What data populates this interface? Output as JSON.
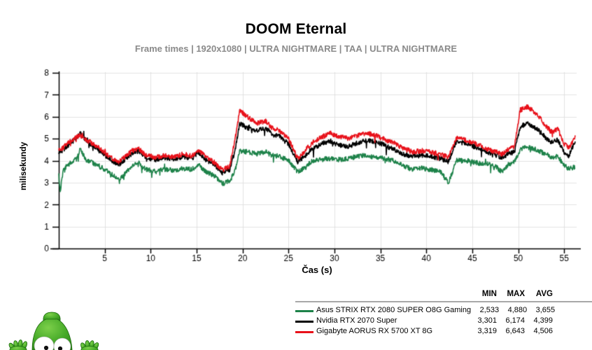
{
  "page": {
    "background": "#ffffff"
  },
  "header": {
    "title": "DOOM Eternal",
    "subtitle": "Frame times | 1920x1080 | ULTRA NIGHTMARE | TAA | ULTRA NIGHTMARE"
  },
  "chart_data": {
    "type": "line",
    "title": "DOOM Eternal",
    "subtitle": "Frame times | 1920x1080 | ULTRA NIGHTMARE | TAA | ULTRA NIGHTMARE",
    "xlabel": "Čas (s)",
    "ylabel": "milisekundy",
    "xlim": [
      0,
      56.2
    ],
    "ylim": [
      0,
      8
    ],
    "xticks": [
      5,
      10,
      15,
      20,
      25,
      30,
      35,
      40,
      45,
      50,
      55
    ],
    "yticks": [
      0,
      1,
      2,
      3,
      4,
      5,
      6,
      7,
      8
    ],
    "grid": true,
    "grid_color": "#e2e2e2",
    "axis_color": "#000000",
    "sample_step_s": 0.04,
    "noise_amplitude_ms": 0.22,
    "legend": {
      "columns": [
        "MIN",
        "MAX",
        "AVG"
      ],
      "position": "bottom-right",
      "rule_color": "#a8a8a8"
    },
    "series": [
      {
        "name": "Asus STRIX RTX 2080 SUPER O8G Gaming",
        "color": "#1d8249",
        "min": "2,533",
        "max": "4,880",
        "avg": "3,655",
        "keypoints": [
          [
            0,
            3.35
          ],
          [
            0.15,
            2.6
          ],
          [
            0.5,
            3.6
          ],
          [
            1,
            3.8
          ],
          [
            2,
            4.1
          ],
          [
            2.35,
            4.55
          ],
          [
            3,
            4.0
          ],
          [
            4,
            3.85
          ],
          [
            5,
            3.6
          ],
          [
            6,
            3.3
          ],
          [
            6.6,
            3.15
          ],
          [
            7.3,
            3.45
          ],
          [
            8,
            3.75
          ],
          [
            8.7,
            3.9
          ],
          [
            9.5,
            3.6
          ],
          [
            10.5,
            3.5
          ],
          [
            11.5,
            3.6
          ],
          [
            12.5,
            3.55
          ],
          [
            13.5,
            3.65
          ],
          [
            14.5,
            3.6
          ],
          [
            15.2,
            3.8
          ],
          [
            16,
            3.5
          ],
          [
            17,
            3.3
          ],
          [
            17.8,
            2.95
          ],
          [
            18.6,
            3.05
          ],
          [
            19.2,
            3.55
          ],
          [
            19.7,
            4.45
          ],
          [
            20.5,
            4.4
          ],
          [
            21.5,
            4.3
          ],
          [
            22.5,
            4.4
          ],
          [
            23.2,
            4.25
          ],
          [
            24,
            4.2
          ],
          [
            25,
            4.0
          ],
          [
            26,
            3.5
          ],
          [
            26.6,
            3.65
          ],
          [
            27.5,
            3.95
          ],
          [
            28.5,
            4.05
          ],
          [
            29.5,
            4.1
          ],
          [
            30.5,
            4.05
          ],
          [
            31.5,
            4.1
          ],
          [
            32.5,
            4.2
          ],
          [
            33.5,
            4.25
          ],
          [
            34.5,
            4.15
          ],
          [
            35.5,
            4.1
          ],
          [
            36.5,
            4.0
          ],
          [
            37.5,
            3.75
          ],
          [
            38.5,
            3.6
          ],
          [
            39.5,
            3.65
          ],
          [
            40.5,
            3.6
          ],
          [
            41.5,
            3.5
          ],
          [
            42.4,
            3.0
          ],
          [
            43.3,
            4.0
          ],
          [
            44.5,
            4.0
          ],
          [
            45.5,
            3.9
          ],
          [
            46.5,
            3.85
          ],
          [
            47.5,
            3.75
          ],
          [
            48.2,
            3.5
          ],
          [
            49,
            3.85
          ],
          [
            49.6,
            3.95
          ],
          [
            50.2,
            4.5
          ],
          [
            51,
            4.62
          ],
          [
            52,
            4.5
          ],
          [
            53,
            4.3
          ],
          [
            53.6,
            4.15
          ],
          [
            54.3,
            4.2
          ],
          [
            55,
            3.8
          ],
          [
            55.5,
            3.62
          ],
          [
            56.2,
            3.72
          ]
        ]
      },
      {
        "name": "Nvidia RTX 2070 Super",
        "color": "#000000",
        "min": "3,301",
        "max": "6,174",
        "avg": "4,399",
        "keypoints": [
          [
            0,
            4.35
          ],
          [
            0.5,
            4.5
          ],
          [
            1,
            4.7
          ],
          [
            2,
            5.05
          ],
          [
            2.4,
            5.25
          ],
          [
            3,
            4.9
          ],
          [
            4,
            4.6
          ],
          [
            5,
            4.25
          ],
          [
            6,
            3.95
          ],
          [
            6.6,
            3.85
          ],
          [
            7.3,
            4.1
          ],
          [
            8,
            4.35
          ],
          [
            8.7,
            4.45
          ],
          [
            9.5,
            4.15
          ],
          [
            10.5,
            4.05
          ],
          [
            11.5,
            4.15
          ],
          [
            12.5,
            4.05
          ],
          [
            13.5,
            4.2
          ],
          [
            14.5,
            4.1
          ],
          [
            15.2,
            4.4
          ],
          [
            16,
            4.05
          ],
          [
            17,
            3.8
          ],
          [
            17.8,
            3.45
          ],
          [
            18.6,
            3.6
          ],
          [
            19.2,
            4.5
          ],
          [
            19.7,
            5.7
          ],
          [
            20.5,
            5.5
          ],
          [
            21.5,
            5.35
          ],
          [
            22.5,
            5.5
          ],
          [
            23.2,
            5.2
          ],
          [
            24,
            5.1
          ],
          [
            25,
            4.75
          ],
          [
            26,
            3.95
          ],
          [
            26.6,
            4.15
          ],
          [
            27.5,
            4.5
          ],
          [
            28.5,
            4.75
          ],
          [
            29.5,
            4.9
          ],
          [
            30.5,
            4.7
          ],
          [
            31.5,
            4.65
          ],
          [
            32.5,
            4.8
          ],
          [
            33.5,
            4.95
          ],
          [
            34.5,
            4.85
          ],
          [
            35.5,
            4.7
          ],
          [
            36.5,
            4.5
          ],
          [
            37.5,
            4.3
          ],
          [
            38.5,
            4.2
          ],
          [
            39.5,
            4.25
          ],
          [
            40.5,
            4.2
          ],
          [
            41.5,
            4.1
          ],
          [
            42.4,
            3.95
          ],
          [
            43.3,
            4.9
          ],
          [
            44.5,
            4.75
          ],
          [
            45.5,
            4.6
          ],
          [
            46.5,
            4.4
          ],
          [
            47.5,
            4.25
          ],
          [
            48.2,
            4.15
          ],
          [
            49,
            4.3
          ],
          [
            49.6,
            4.4
          ],
          [
            50.2,
            5.55
          ],
          [
            51,
            5.68
          ],
          [
            52,
            5.45
          ],
          [
            53,
            5.05
          ],
          [
            53.6,
            4.85
          ],
          [
            54.3,
            4.95
          ],
          [
            55,
            4.35
          ],
          [
            55.5,
            4.2
          ],
          [
            56.2,
            4.9
          ]
        ]
      },
      {
        "name": "Gigabyte AORUS RX 5700 XT 8G",
        "color": "#e8111a",
        "min": "3,319",
        "max": "6,643",
        "avg": "4,506",
        "keypoints": [
          [
            0,
            4.45
          ],
          [
            0.5,
            4.6
          ],
          [
            1,
            4.8
          ],
          [
            2,
            5.1
          ],
          [
            2.4,
            5.15
          ],
          [
            3,
            4.95
          ],
          [
            4,
            4.7
          ],
          [
            5,
            4.35
          ],
          [
            6,
            4.05
          ],
          [
            6.6,
            3.95
          ],
          [
            7.3,
            4.2
          ],
          [
            8,
            4.45
          ],
          [
            8.7,
            4.55
          ],
          [
            9.5,
            4.25
          ],
          [
            10.5,
            4.15
          ],
          [
            11.5,
            4.25
          ],
          [
            12.5,
            4.15
          ],
          [
            13.5,
            4.3
          ],
          [
            14.5,
            4.2
          ],
          [
            15.2,
            4.5
          ],
          [
            16,
            4.15
          ],
          [
            17,
            3.9
          ],
          [
            17.8,
            3.55
          ],
          [
            18.6,
            3.75
          ],
          [
            19.2,
            5.0
          ],
          [
            19.7,
            6.3
          ],
          [
            20.5,
            6.0
          ],
          [
            21.5,
            5.7
          ],
          [
            22.5,
            5.8
          ],
          [
            23.2,
            5.5
          ],
          [
            24,
            5.35
          ],
          [
            25,
            5.0
          ],
          [
            26,
            4.1
          ],
          [
            26.6,
            4.35
          ],
          [
            27.5,
            4.8
          ],
          [
            28.5,
            5.05
          ],
          [
            29.5,
            5.25
          ],
          [
            30.5,
            5.1
          ],
          [
            31.5,
            5.0
          ],
          [
            32.5,
            5.15
          ],
          [
            33.5,
            5.25
          ],
          [
            34.5,
            5.15
          ],
          [
            35.5,
            4.95
          ],
          [
            36.5,
            4.8
          ],
          [
            37.5,
            4.55
          ],
          [
            38.5,
            4.4
          ],
          [
            39.5,
            4.45
          ],
          [
            40.5,
            4.4
          ],
          [
            41.5,
            4.3
          ],
          [
            42.4,
            4.15
          ],
          [
            43.3,
            5.05
          ],
          [
            44.5,
            4.9
          ],
          [
            45.5,
            4.75
          ],
          [
            46.5,
            4.55
          ],
          [
            47.5,
            4.4
          ],
          [
            48.2,
            4.3
          ],
          [
            49,
            4.55
          ],
          [
            49.6,
            4.65
          ],
          [
            50.2,
            6.3
          ],
          [
            51,
            6.45
          ],
          [
            52,
            6.15
          ],
          [
            53,
            5.6
          ],
          [
            53.6,
            5.3
          ],
          [
            54.3,
            5.45
          ],
          [
            55,
            4.75
          ],
          [
            55.5,
            4.6
          ],
          [
            56.2,
            5.05
          ]
        ]
      }
    ]
  },
  "mascot": {
    "description": "green cartoon mascot peeking from bottom-left corner",
    "body_color": "#46aa28",
    "eye_color": "#ffffff",
    "pupil_color": "#111111"
  }
}
